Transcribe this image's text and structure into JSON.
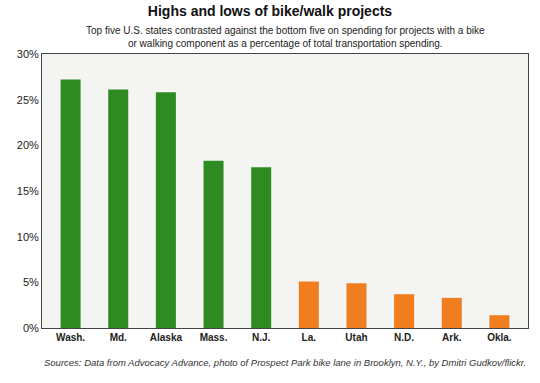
{
  "chart_data": {
    "type": "bar",
    "title": "Highs and lows of bike/walk projects",
    "subtitle": "Top five U.S. states contrasted against the bottom five on spending for projects with a bike or walking component as a percentage of total transportation spending.",
    "annotations": [
      "Sources: Data from Advocacy Advance, photo of Prospect Park bike lane in Brooklyn, N.Y., by Dmitri Gudkov/flickr."
    ],
    "categories": [
      "Wash.",
      "Md.",
      "Alaska",
      "Mass.",
      "N.J.",
      "La.",
      "Utah",
      "N.D.",
      "Ark.",
      "Okla."
    ],
    "values": [
      27.2,
      26.1,
      25.8,
      18.3,
      17.6,
      5.1,
      4.9,
      3.7,
      3.3,
      1.4
    ],
    "colors": [
      "#2e8b22",
      "#2e8b22",
      "#2e8b22",
      "#2e8b22",
      "#2e8b22",
      "#f07d1e",
      "#f07d1e",
      "#f07d1e",
      "#f07d1e",
      "#f07d1e"
    ],
    "ylim": [
      0,
      30
    ],
    "yticks": [
      {
        "value": 0,
        "label": "0%"
      },
      {
        "value": 5,
        "label": "5%"
      },
      {
        "value": 10,
        "label": "10%"
      },
      {
        "value": 15,
        "label": "15%"
      },
      {
        "value": 20,
        "label": "20%"
      },
      {
        "value": 25,
        "label": "25%"
      },
      {
        "value": 30,
        "label": "30%"
      }
    ],
    "grid": false
  }
}
